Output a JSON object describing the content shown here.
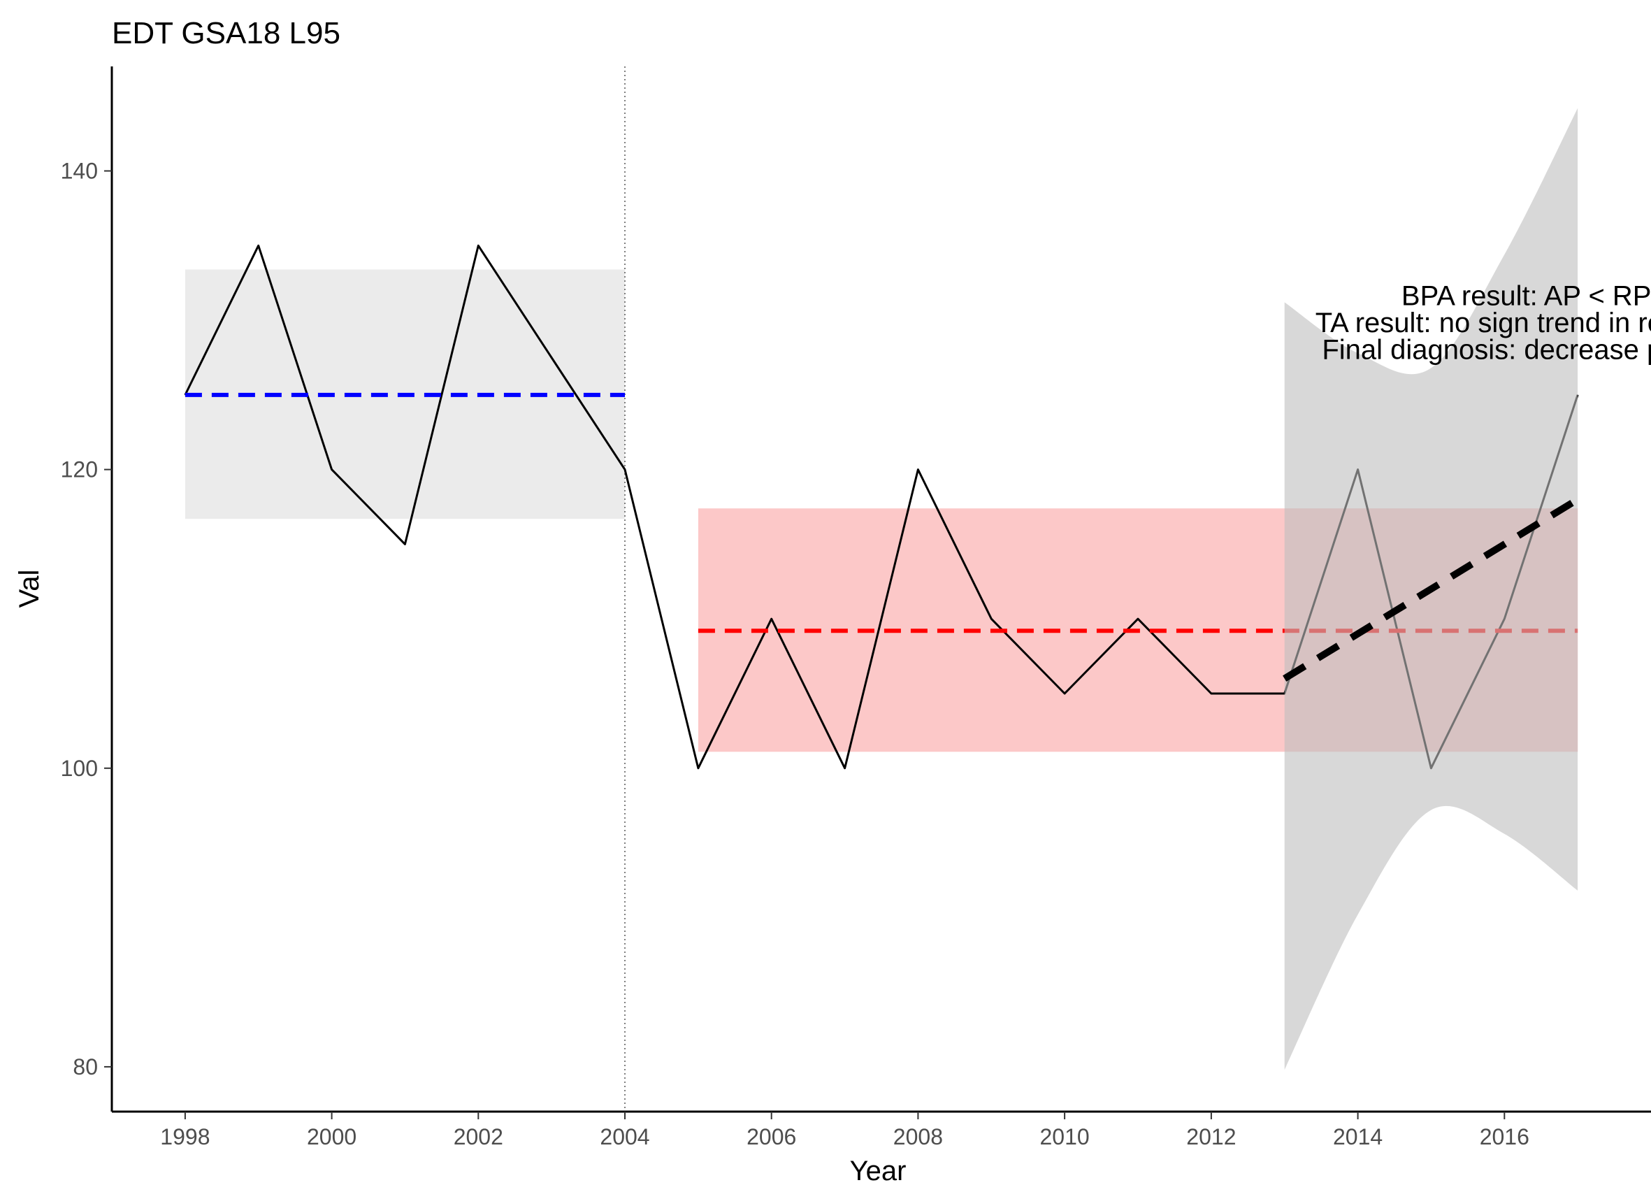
{
  "chart_data": {
    "type": "line",
    "title": "EDT GSA18 L95",
    "xlabel": "Year",
    "ylabel": "Val",
    "xlim": [
      1997,
      2018
    ],
    "ylim": [
      77,
      147
    ],
    "x_ticks": [
      1998,
      2000,
      2002,
      2004,
      2006,
      2008,
      2010,
      2012,
      2014,
      2016
    ],
    "y_ticks": [
      80,
      100,
      120,
      140
    ],
    "grid": false,
    "series": [
      {
        "x": [
          1998,
          1999,
          2000,
          2001,
          2002,
          2003,
          2004,
          2005,
          2006,
          2007,
          2008,
          2009,
          2010,
          2011,
          2012,
          2013,
          2014,
          2015,
          2016,
          2017
        ],
        "values": [
          125,
          135,
          120,
          115,
          135,
          127.5,
          120,
          100,
          110,
          100,
          120,
          110,
          105,
          110,
          105,
          105,
          120,
          100,
          110,
          125
        ],
        "color": "#000000"
      }
    ],
    "changepoint_x": 2004,
    "reference_period": {
      "x_start": 1998,
      "x_end": 2004,
      "mean": 125,
      "band": [
        116.7,
        133.4
      ],
      "line_color": "#0000ff",
      "band_color": "#ebebeb"
    },
    "assessment_period": {
      "x_start": 2005,
      "x_end": 2017,
      "mean": 109.2,
      "band": [
        101.1,
        117.4
      ],
      "line_color": "#ff0000",
      "band_color": "#fcc8c8"
    },
    "trend": {
      "x": [
        2013,
        2014,
        2015,
        2016,
        2017
      ],
      "fit": [
        106,
        109,
        112,
        115,
        118
      ],
      "ci_lower": [
        79.8,
        90.2,
        97.2,
        95.6,
        91.8
      ],
      "ci_upper": [
        131.2,
        127.8,
        126.8,
        134.4,
        144.2
      ],
      "line_color": "#000000",
      "band_color": "#bebebe"
    },
    "annotations": [
      "BPA result: AP < RP",
      "TA result: no sign trend in recent y",
      "Final diagnosis: decrease pressu"
    ]
  }
}
